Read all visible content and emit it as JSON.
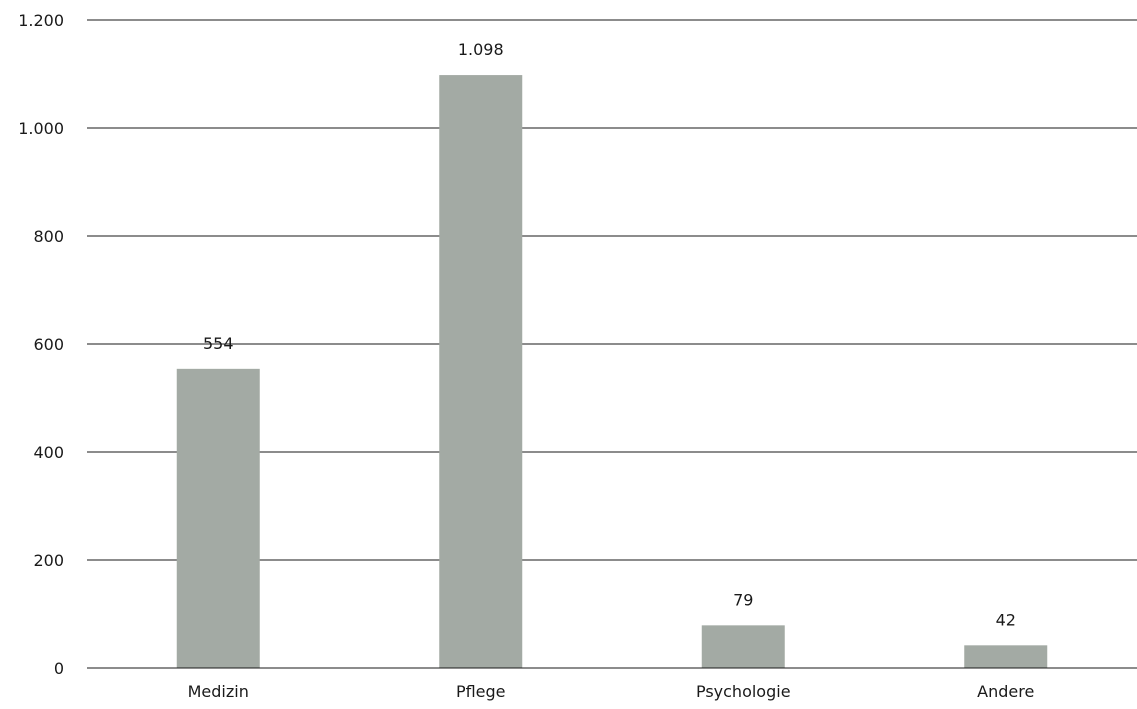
{
  "chart_data": {
    "type": "bar",
    "categories": [
      "Medizin",
      "Pflege",
      "Psychologie",
      "Andere"
    ],
    "values": [
      554,
      1098,
      79,
      42
    ],
    "value_labels": [
      "554",
      "1.098",
      "79",
      "42"
    ],
    "y_ticks": [
      0,
      200,
      400,
      600,
      800,
      1000,
      1200
    ],
    "y_tick_labels": [
      "0",
      "200",
      "400",
      "600",
      "800",
      "1.000",
      "1.200"
    ],
    "ylim": [
      0,
      1200
    ],
    "grid": true,
    "bar_color": "#a3aaa4",
    "title": "",
    "xlabel": "",
    "ylabel": ""
  }
}
